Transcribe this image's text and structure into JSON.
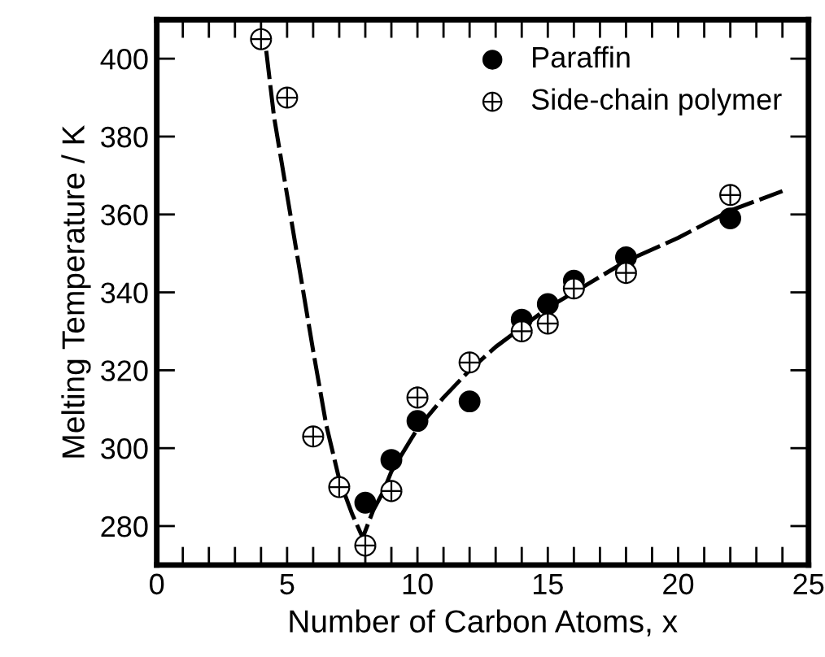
{
  "chart_data": {
    "type": "scatter",
    "xlabel": "Number of Carbon Atoms, x",
    "ylabel": "Melting Temperature / K",
    "xlim": [
      0,
      25
    ],
    "xticks": [
      0,
      5,
      10,
      15,
      20,
      25
    ],
    "ylim": [
      270,
      410
    ],
    "yticks": [
      280,
      300,
      320,
      340,
      360,
      380,
      400
    ],
    "grid": false,
    "legend": "top right",
    "series": [
      {
        "name": "Paraffin",
        "color": "#000000",
        "marker": "circle",
        "x": [
          8,
          9,
          10,
          12,
          14,
          15,
          16,
          18,
          22
        ],
        "values": [
          286,
          297,
          307,
          312,
          333,
          337,
          343,
          349,
          359
        ]
      },
      {
        "name": "Side-chain polymer",
        "color": "#000000",
        "marker": "cross",
        "x": [
          4,
          5,
          6,
          7,
          8,
          9,
          10,
          12,
          14,
          15,
          16,
          18,
          22
        ],
        "values": [
          405,
          390,
          303,
          290,
          275,
          289,
          313,
          322,
          330,
          332,
          341,
          345,
          365
        ]
      },
      {
        "type": "line",
        "color": "#000000",
        "line_style": "dashed",
        "marker": "none",
        "x": [
          4.2,
          4.5,
          5,
          5.5,
          6,
          6.5,
          7,
          7.5,
          7.9,
          8.3,
          8.7,
          9,
          10,
          11,
          12,
          13,
          14,
          15,
          16,
          18,
          20,
          22,
          24
        ],
        "values": [
          402,
          385,
          365,
          345,
          325,
          306,
          292,
          283,
          277,
          284,
          289,
          294,
          305,
          313,
          320,
          326,
          331,
          336,
          340,
          348,
          354,
          361,
          366
        ]
      }
    ]
  }
}
